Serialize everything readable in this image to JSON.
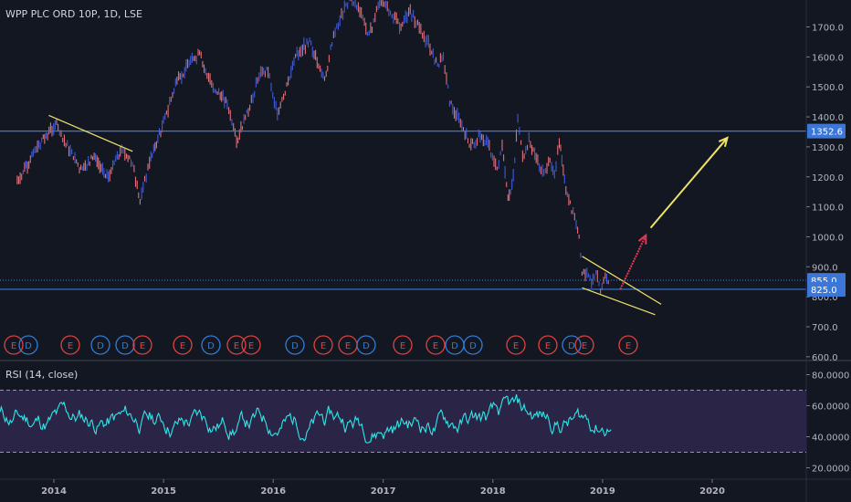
{
  "header": {
    "title": "WPP PLC ORD 10P, 1D, LSE"
  },
  "rsi_panel": {
    "title": "RSI (14, close)"
  },
  "colors": {
    "background": "#131722",
    "rsi_band": "#2a2446",
    "price_line": "#3c77d8",
    "rsi_line": "#2ee7e7",
    "candle_up": "#3f5ad8",
    "candle_down": "#e0707a",
    "trend_yellow": "#f0e36a",
    "arrow_red": "#e8364f",
    "event_E": "#e0413d",
    "event_D": "#2f7ed8"
  },
  "chart_data": [
    {
      "type": "candlestick",
      "title": "WPP PLC ORD 10P, 1D, LSE",
      "y_axis": {
        "ticks": [
          "600.0",
          "700.0",
          "800.0",
          "900.0",
          "1000.0",
          "1100.0",
          "1200.0",
          "1300.0",
          "1400.0",
          "1500.0",
          "1600.0",
          "1700.0"
        ],
        "range": [
          600,
          1830
        ]
      },
      "x_axis": {
        "ticks": [
          "2014",
          "2015",
          "2016",
          "2017",
          "2018",
          "2019",
          "2020"
        ]
      },
      "price_path": [
        {
          "date": "2013-09-01",
          "price": 1180
        },
        {
          "date": "2013-10-15",
          "price": 1260
        },
        {
          "date": "2013-12-01",
          "price": 1330
        },
        {
          "date": "2014-01-10",
          "price": 1380
        },
        {
          "date": "2014-02-20",
          "price": 1290
        },
        {
          "date": "2014-04-01",
          "price": 1220
        },
        {
          "date": "2014-05-15",
          "price": 1270
        },
        {
          "date": "2014-07-01",
          "price": 1200
        },
        {
          "date": "2014-08-15",
          "price": 1290
        },
        {
          "date": "2014-09-20",
          "price": 1240
        },
        {
          "date": "2014-10-15",
          "price": 1120
        },
        {
          "date": "2014-11-15",
          "price": 1250
        },
        {
          "date": "2015-01-01",
          "price": 1380
        },
        {
          "date": "2015-02-15",
          "price": 1520
        },
        {
          "date": "2015-04-01",
          "price": 1580
        },
        {
          "date": "2015-05-01",
          "price": 1610
        },
        {
          "date": "2015-06-15",
          "price": 1490
        },
        {
          "date": "2015-08-01",
          "price": 1450
        },
        {
          "date": "2015-09-01",
          "price": 1320
        },
        {
          "date": "2015-10-15",
          "price": 1430
        },
        {
          "date": "2015-11-15",
          "price": 1540
        },
        {
          "date": "2015-12-15",
          "price": 1560
        },
        {
          "date": "2016-01-15",
          "price": 1400
        },
        {
          "date": "2016-02-15",
          "price": 1500
        },
        {
          "date": "2016-03-20",
          "price": 1610
        },
        {
          "date": "2016-05-01",
          "price": 1650
        },
        {
          "date": "2016-06-20",
          "price": 1520
        },
        {
          "date": "2016-07-15",
          "price": 1650
        },
        {
          "date": "2016-08-15",
          "price": 1740
        },
        {
          "date": "2016-09-15",
          "price": 1800
        },
        {
          "date": "2016-10-15",
          "price": 1760
        },
        {
          "date": "2016-11-15",
          "price": 1670
        },
        {
          "date": "2016-12-20",
          "price": 1780
        },
        {
          "date": "2017-01-20",
          "price": 1760
        },
        {
          "date": "2017-03-01",
          "price": 1700
        },
        {
          "date": "2017-04-01",
          "price": 1750
        },
        {
          "date": "2017-05-01",
          "price": 1700
        },
        {
          "date": "2017-06-01",
          "price": 1640
        },
        {
          "date": "2017-07-01",
          "price": 1570
        },
        {
          "date": "2017-07-20",
          "price": 1610
        },
        {
          "date": "2017-08-10",
          "price": 1450
        },
        {
          "date": "2017-09-15",
          "price": 1380
        },
        {
          "date": "2017-10-20",
          "price": 1300
        },
        {
          "date": "2017-11-20",
          "price": 1340
        },
        {
          "date": "2017-12-20",
          "price": 1300
        },
        {
          "date": "2018-01-15",
          "price": 1220
        },
        {
          "date": "2018-02-01",
          "price": 1300
        },
        {
          "date": "2018-02-20",
          "price": 1120
        },
        {
          "date": "2018-03-10",
          "price": 1200
        },
        {
          "date": "2018-03-25",
          "price": 1400
        },
        {
          "date": "2018-04-10",
          "price": 1260
        },
        {
          "date": "2018-05-01",
          "price": 1320
        },
        {
          "date": "2018-05-25",
          "price": 1270
        },
        {
          "date": "2018-06-15",
          "price": 1210
        },
        {
          "date": "2018-07-10",
          "price": 1250
        },
        {
          "date": "2018-07-25",
          "price": 1210
        },
        {
          "date": "2018-08-10",
          "price": 1320
        },
        {
          "date": "2018-09-01",
          "price": 1150
        },
        {
          "date": "2018-09-25",
          "price": 1080
        },
        {
          "date": "2018-10-15",
          "price": 1010
        },
        {
          "date": "2018-10-25",
          "price": 870
        },
        {
          "date": "2018-11-10",
          "price": 890
        },
        {
          "date": "2018-11-25",
          "price": 835
        },
        {
          "date": "2018-12-10",
          "price": 870
        },
        {
          "date": "2018-12-25",
          "price": 830
        },
        {
          "date": "2019-01-10",
          "price": 860
        },
        {
          "date": "2019-01-25",
          "price": 855
        }
      ],
      "horizontal_levels": [
        {
          "price": 1352.6,
          "label": "1352.6",
          "style": "solid"
        },
        {
          "price": 855.0,
          "label": "855.0",
          "style": "dotted"
        },
        {
          "price": 825.0,
          "label": "825.0",
          "style": "solid"
        }
      ],
      "trendlines": [
        {
          "from": {
            "date": "2013-12-15",
            "price": 1405
          },
          "to": {
            "date": "2014-09-20",
            "price": 1285
          }
        },
        {
          "from": {
            "date": "2018-10-25",
            "price": 935
          },
          "to": {
            "date": "2019-07-15",
            "price": 775
          }
        },
        {
          "from": {
            "date": "2018-10-25",
            "price": 830
          },
          "to": {
            "date": "2019-06-25",
            "price": 740
          }
        }
      ],
      "arrows": [
        {
          "color": "red",
          "from": {
            "date": "2019-03-01",
            "price": 825
          },
          "to": {
            "date": "2019-05-25",
            "price": 1005
          }
        },
        {
          "color": "yellow",
          "from": {
            "date": "2019-06-10",
            "price": 1030
          },
          "to": {
            "date": "2020-02-20",
            "price": 1330
          }
        }
      ],
      "events": [
        "E",
        "D",
        "E",
        "D",
        "D",
        "E",
        "E",
        "D",
        "E",
        "E",
        "D",
        "E",
        "E",
        "D",
        "E",
        "E",
        "D",
        "D",
        "E",
        "E",
        "D",
        "E",
        "E"
      ]
    },
    {
      "type": "line",
      "title": "RSI (14, close)",
      "y_axis": {
        "ticks": [
          "20.0000",
          "40.0000",
          "60.0000",
          "80.0000"
        ],
        "range": [
          15,
          82
        ]
      },
      "band": [
        30,
        70
      ],
      "series": [
        {
          "values_summary": "oscillates mostly between 30 and 70, ends near 52"
        }
      ]
    }
  ]
}
